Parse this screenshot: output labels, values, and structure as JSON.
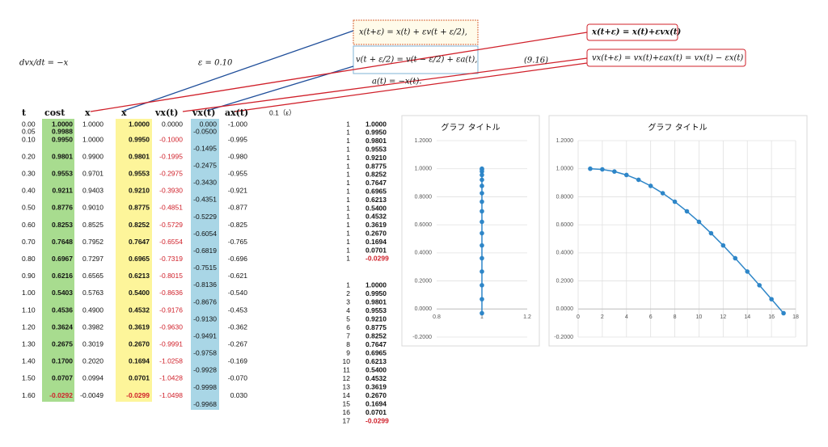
{
  "equations": {
    "ode": "dvx/dt = −x",
    "epsilon": "ε = 0.10",
    "x_update": "x(t+ε) = x(t) + εv(t + ε/2),",
    "v_update": "v(t + ε/2) = v(t − ε/2) + εa(t),",
    "accel": "a(t) = −x(t).",
    "eq_number": "(9.16)",
    "euler_x": "x(t+ε) = x(t)+εvx(t)",
    "euler_v": "vx(t+ε) = vx(t)+εax(t) = vx(t) − εx(t)"
  },
  "table": {
    "headers": [
      "t",
      "cost",
      "x",
      "x",
      "vx(t)",
      "vx(t)",
      "ax(t)"
    ],
    "epsilon_note": "0.1（ε）",
    "columns": {
      "t": [
        "0.00",
        "0.05",
        "0.10",
        "0.20",
        "0.30",
        "0.40",
        "0.50",
        "0.60",
        "0.70",
        "0.80",
        "0.90",
        "1.00",
        "1.10",
        "1.20",
        "1.30",
        "1.40",
        "1.50",
        "1.60"
      ],
      "cost": [
        "1.0000",
        "0.9988",
        "0.9950",
        "0.9801",
        "0.9553",
        "0.9211",
        "0.8776",
        "0.8253",
        "0.7648",
        "0.6967",
        "0.6216",
        "0.5403",
        "0.4536",
        "0.3624",
        "0.2675",
        "0.1700",
        "0.0707",
        "-0.0292"
      ],
      "x": [
        "1.0000",
        "1.0000",
        "0.9900",
        "0.9701",
        "0.9403",
        "0.9010",
        "0.8525",
        "0.7952",
        "0.7297",
        "0.6565",
        "0.5763",
        "0.4900",
        "0.3982",
        "0.3019",
        "0.2020",
        "0.0994",
        "-0.0049"
      ],
      "x_leapfrog": [
        "1.0000",
        "0.9950",
        "0.9801",
        "0.9553",
        "0.9210",
        "0.8775",
        "0.8252",
        "0.7647",
        "0.6965",
        "0.6213",
        "0.5400",
        "0.4532",
        "0.3619",
        "0.2670",
        "0.1694",
        "0.0701",
        "-0.0299"
      ],
      "vx": [
        "0.0000",
        "-0.1000",
        "-0.1995",
        "-0.2975",
        "-0.3930",
        "-0.4851",
        "-0.5729",
        "-0.6554",
        "-0.7319",
        "-0.8015",
        "-0.8636",
        "-0.9176",
        "-0.9630",
        "-0.9991",
        "-1.0258",
        "-1.0428",
        "-1.0498"
      ],
      "vx_half": [
        "0.000",
        "-0.0500",
        "-0.1495",
        "-0.2475",
        "-0.3430",
        "-0.4351",
        "-0.5229",
        "-0.6054",
        "-0.6819",
        "-0.7515",
        "-0.8136",
        "-0.8676",
        "-0.9130",
        "-0.9491",
        "-0.9758",
        "-0.9928",
        "-0.9998",
        "-0.9968"
      ],
      "ax": [
        "-1.000",
        "-0.995",
        "-0.980",
        "-0.955",
        "-0.921",
        "-0.877",
        "-0.825",
        "-0.765",
        "-0.696",
        "-0.621",
        "-0.540",
        "-0.453",
        "-0.362",
        "-0.267",
        "-0.169",
        "-0.070",
        "0.030"
      ]
    }
  },
  "lists": [
    {
      "index": [
        "1",
        "1",
        "1",
        "1",
        "1",
        "1",
        "1",
        "1",
        "1",
        "1",
        "1",
        "1",
        "1",
        "1",
        "1",
        "1",
        "1"
      ],
      "values": [
        "1.0000",
        "0.9950",
        "0.9801",
        "0.9553",
        "0.9210",
        "0.8775",
        "0.8252",
        "0.7647",
        "0.6965",
        "0.6213",
        "0.5400",
        "0.4532",
        "0.3619",
        "0.2670",
        "0.1694",
        "0.0701",
        "-0.0299"
      ]
    },
    {
      "index": [
        "1",
        "2",
        "3",
        "4",
        "5",
        "6",
        "7",
        "8",
        "9",
        "10",
        "11",
        "12",
        "13",
        "14",
        "15",
        "16",
        "17"
      ],
      "values": [
        "1.0000",
        "0.9950",
        "0.9801",
        "0.9553",
        "0.9210",
        "0.8775",
        "0.8252",
        "0.7647",
        "0.6965",
        "0.6213",
        "0.5400",
        "0.4532",
        "0.3619",
        "0.2670",
        "0.1694",
        "0.0701",
        "-0.0299"
      ]
    }
  ],
  "chart_data": [
    {
      "type": "line",
      "title": "グラフ タイトル",
      "color": "#2e86c8",
      "grid": true,
      "x": [
        1,
        1,
        1,
        1,
        1,
        1,
        1,
        1,
        1,
        1,
        1,
        1,
        1,
        1,
        1,
        1,
        1
      ],
      "values": [
        1.0,
        0.995,
        0.9801,
        0.9553,
        0.921,
        0.8775,
        0.8252,
        0.7647,
        0.6965,
        0.6213,
        0.54,
        0.4532,
        0.3619,
        0.267,
        0.1694,
        0.0701,
        -0.0299
      ],
      "xlim": [
        0.8,
        1.2
      ],
      "xticks": [
        0.8,
        1,
        1.2
      ],
      "ylim": [
        -0.2,
        1.2
      ],
      "yticks": [
        {
          "value": -0.2,
          "label": "-0.2000"
        },
        {
          "value": 0,
          "label": "0.0000"
        },
        {
          "value": 0.2,
          "label": "0.2000"
        },
        {
          "value": 0.4,
          "label": "0.4000"
        },
        {
          "value": 0.6,
          "label": "0.6000"
        },
        {
          "value": 0.8,
          "label": "0.8000"
        },
        {
          "value": 1.0,
          "label": "1.0000"
        },
        {
          "value": 1.2,
          "label": "1.2000"
        }
      ]
    },
    {
      "type": "line",
      "title": "グラフ タイトル",
      "color": "#2e86c8",
      "grid": true,
      "x": [
        1,
        2,
        3,
        4,
        5,
        6,
        7,
        8,
        9,
        10,
        11,
        12,
        13,
        14,
        15,
        16,
        17
      ],
      "values": [
        1.0,
        0.995,
        0.9801,
        0.9553,
        0.921,
        0.8775,
        0.8252,
        0.7647,
        0.6965,
        0.6213,
        0.54,
        0.4532,
        0.3619,
        0.267,
        0.1694,
        0.0701,
        -0.0299
      ],
      "xlim": [
        0,
        18
      ],
      "xticks": [
        0,
        2,
        4,
        6,
        8,
        10,
        12,
        14,
        16,
        18
      ],
      "ylim": [
        -0.2,
        1.2
      ],
      "yticks": [
        {
          "value": -0.2,
          "label": "-0.2000"
        },
        {
          "value": 0,
          "label": "0.0000"
        },
        {
          "value": 0.2,
          "label": "0.2000"
        },
        {
          "value": 0.4,
          "label": "0.4000"
        },
        {
          "value": 0.6,
          "label": "0.6000"
        },
        {
          "value": 0.8,
          "label": "0.8000"
        },
        {
          "value": 1.0,
          "label": "1.0000"
        },
        {
          "value": 1.2,
          "label": "1.2000"
        }
      ]
    }
  ]
}
